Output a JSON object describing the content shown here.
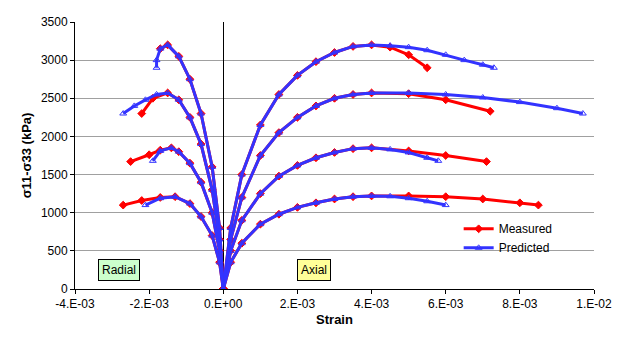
{
  "chart_data": {
    "type": "scatter",
    "x_label": "Strain",
    "y_label": "σ11-σ33 (kPa)",
    "xlim": [
      -0.004,
      0.01
    ],
    "xticks": [
      {
        "value": -0.004,
        "label": "-4.E-03"
      },
      {
        "value": -0.002,
        "label": "-2.E-03"
      },
      {
        "value": 0,
        "label": "0.E+00"
      },
      {
        "value": 0.002,
        "label": "2.E-03"
      },
      {
        "value": 0.004,
        "label": "4.E-03"
      },
      {
        "value": 0.006,
        "label": "6.E-03"
      },
      {
        "value": 0.008,
        "label": "8.E-03"
      },
      {
        "value": 0.01,
        "label": "1.E-02"
      }
    ],
    "ylim": [
      0,
      3500
    ],
    "yticks": [
      0,
      500,
      1000,
      1500,
      2000,
      2500,
      3000,
      3500
    ],
    "grid": true,
    "legend": "bottom right",
    "annotations": [
      {
        "text": "Radial",
        "color": "#ccffcc"
      },
      {
        "text": "Axial",
        "color": "#ffff99"
      }
    ],
    "series": [
      {
        "name": "Measured",
        "color": "#ff0000",
        "marker": "diamond",
        "x": [
          0,
          0.0002,
          0.0005,
          0.001,
          0.0015,
          0.002,
          0.0025,
          0.003,
          0.0035,
          0.004,
          0.0045,
          0.005,
          0.0055,
          null,
          0,
          0.0002,
          0.0005,
          0.001,
          0.0015,
          0.002,
          0.0025,
          0.003,
          0.0035,
          0.004,
          0.005,
          0.006,
          0.0072,
          null,
          0,
          0.0002,
          0.0005,
          0.001,
          0.0015,
          0.002,
          0.0025,
          0.003,
          0.0035,
          0.004,
          0.005,
          0.006,
          0.0071,
          null,
          0,
          0.0002,
          0.0005,
          0.001,
          0.0015,
          0.002,
          0.0025,
          0.003,
          0.0035,
          0.004,
          0.005,
          0.006,
          0.007,
          0.008,
          0.0085,
          null,
          0,
          -0.0001,
          -0.0003,
          -0.0006,
          -0.0009,
          -0.0012,
          -0.0015,
          -0.0017,
          null,
          0,
          -0.0001,
          -0.0003,
          -0.0006,
          -0.0009,
          -0.0012,
          -0.0015,
          -0.0019,
          -0.0022,
          null,
          0,
          -0.0001,
          -0.0003,
          -0.0006,
          -0.0009,
          -0.0012,
          -0.0014,
          -0.0017,
          -0.002,
          -0.0025,
          null,
          0,
          -0.0001,
          -0.0003,
          -0.0006,
          -0.0009,
          -0.0013,
          -0.0017,
          -0.0022,
          -0.0027
        ],
        "values": [
          0,
          800,
          1500,
          2150,
          2550,
          2800,
          2980,
          3100,
          3180,
          3200,
          3170,
          3070,
          2900,
          null,
          0,
          650,
          1200,
          1750,
          2050,
          2250,
          2400,
          2500,
          2550,
          2570,
          2560,
          2480,
          2330,
          null,
          0,
          500,
          900,
          1250,
          1480,
          1620,
          1720,
          1790,
          1840,
          1850,
          1810,
          1750,
          1670,
          null,
          0,
          350,
          600,
          850,
          980,
          1070,
          1130,
          1180,
          1210,
          1220,
          1220,
          1210,
          1180,
          1130,
          1100,
          null,
          0,
          800,
          1600,
          2300,
          2750,
          3050,
          3200,
          3150,
          null,
          0,
          650,
          1300,
          1900,
          2250,
          2480,
          2570,
          2500,
          2300,
          null,
          0,
          500,
          1000,
          1400,
          1650,
          1800,
          1850,
          1820,
          1760,
          1670,
          null,
          0,
          350,
          700,
          950,
          1120,
          1210,
          1200,
          1160,
          1100
        ]
      },
      {
        "name": "Predicted",
        "color": "#3333ff",
        "marker": "triangle-up-open",
        "x": [
          0,
          0.0002,
          0.0005,
          0.001,
          0.0015,
          0.002,
          0.0025,
          0.003,
          0.0035,
          0.004,
          0.0045,
          0.005,
          0.0055,
          0.006,
          0.0065,
          0.007,
          0.0073,
          null,
          0,
          0.0002,
          0.0005,
          0.001,
          0.0015,
          0.002,
          0.0025,
          0.003,
          0.0035,
          0.004,
          0.005,
          0.006,
          0.007,
          0.008,
          0.009,
          0.0097,
          null,
          0,
          0.0002,
          0.0005,
          0.001,
          0.0015,
          0.002,
          0.0025,
          0.003,
          0.0035,
          0.004,
          0.0045,
          0.005,
          0.0055,
          0.0058,
          null,
          0,
          0.0002,
          0.0005,
          0.001,
          0.0015,
          0.002,
          0.0025,
          0.003,
          0.0035,
          0.004,
          0.0045,
          0.005,
          0.0055,
          0.006,
          null,
          0,
          -0.0001,
          -0.0003,
          -0.0006,
          -0.0009,
          -0.0012,
          -0.0015,
          -0.0017,
          -0.0018,
          -0.0018,
          null,
          0,
          -0.0001,
          -0.0003,
          -0.0006,
          -0.0009,
          -0.0012,
          -0.0015,
          -0.0018,
          -0.0021,
          -0.0024,
          -0.0027,
          null,
          0,
          -0.0001,
          -0.0003,
          -0.0006,
          -0.0009,
          -0.0012,
          -0.0014,
          -0.0017,
          -0.0019,
          null,
          0,
          -0.0001,
          -0.0003,
          -0.0006,
          -0.0009,
          -0.0013,
          -0.0017,
          -0.0021
        ],
        "values": [
          0,
          800,
          1500,
          2150,
          2550,
          2800,
          2980,
          3100,
          3180,
          3200,
          3190,
          3170,
          3130,
          3070,
          3000,
          2940,
          2900,
          null,
          0,
          650,
          1200,
          1750,
          2050,
          2250,
          2400,
          2500,
          2550,
          2570,
          2570,
          2550,
          2510,
          2450,
          2370,
          2300,
          null,
          0,
          500,
          900,
          1250,
          1480,
          1620,
          1720,
          1790,
          1840,
          1850,
          1830,
          1790,
          1720,
          1680,
          null,
          0,
          350,
          600,
          850,
          980,
          1070,
          1130,
          1180,
          1210,
          1220,
          1215,
          1190,
          1150,
          1100,
          null,
          0,
          800,
          1600,
          2300,
          2750,
          3050,
          3200,
          3150,
          3000,
          2900,
          null,
          0,
          650,
          1300,
          1900,
          2250,
          2480,
          2570,
          2550,
          2480,
          2400,
          2300,
          null,
          0,
          500,
          1000,
          1400,
          1650,
          1800,
          1850,
          1810,
          1680,
          null,
          0,
          350,
          700,
          950,
          1120,
          1210,
          1190,
          1100
        ]
      }
    ]
  }
}
